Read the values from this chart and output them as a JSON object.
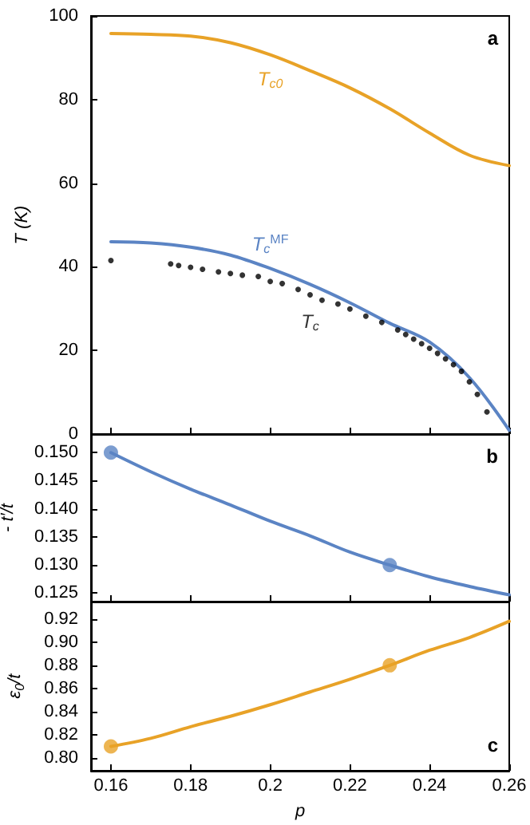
{
  "chart_data": [
    {
      "type": "line",
      "ylabel": "T (K)",
      "xlim": [
        0.155,
        0.26
      ],
      "ylim": [
        0,
        100
      ],
      "xticks": [
        0.16,
        0.18,
        0.2,
        0.22,
        0.24,
        0.26
      ],
      "yticks": [
        0,
        20,
        40,
        60,
        80,
        100
      ],
      "tick_labels": "y",
      "grid": false,
      "legend": false,
      "series": [
        {
          "name": "T$_{c0}$",
          "color": "#e8a227",
          "marker": "none",
          "x": [
            0.16,
            0.17,
            0.18,
            0.19,
            0.2,
            0.21,
            0.22,
            0.23,
            0.24,
            0.25,
            0.26
          ],
          "values": [
            95.8,
            95.6,
            95.2,
            93.6,
            90.7,
            86.9,
            82.8,
            77.8,
            72,
            66.7,
            64.2
          ]
        },
        {
          "name": "T$_{c}$$^{MF}$",
          "color": "#5b84c4",
          "marker": "none",
          "x": [
            0.16,
            0.17,
            0.18,
            0.19,
            0.2,
            0.21,
            0.22,
            0.23,
            0.24,
            0.25,
            0.26
          ],
          "values": [
            46,
            45.7,
            44.7,
            42.8,
            39.6,
            35.8,
            31.4,
            26.5,
            22,
            13.5,
            0.9
          ]
        },
        {
          "type": "scatter",
          "name": "T$_{c}$",
          "color": "#000000",
          "marker": "circle",
          "x": [
            0.16,
            0.175,
            0.177,
            0.18,
            0.183,
            0.187,
            0.19,
            0.193,
            0.197,
            0.2,
            0.203,
            0.207,
            0.21,
            0.213,
            0.217,
            0.22,
            0.224,
            0.228,
            0.232,
            0.234,
            0.236,
            0.238,
            0.24,
            0.242,
            0.244,
            0.246,
            0.248,
            0.25,
            0.252,
            0.2544
          ],
          "values": [
            41.5,
            40.7,
            40.3,
            39.9,
            39.4,
            38.8,
            38.4,
            38,
            37.7,
            36.5,
            36,
            34.6,
            33.3,
            32,
            31.1,
            29.9,
            28.2,
            26.7,
            24.9,
            23.8,
            22.7,
            21.6,
            20.5,
            19.3,
            18,
            16.6,
            15,
            12.5,
            9.5,
            5.3
          ]
        }
      ],
      "annotations": [
        "a"
      ]
    },
    {
      "type": "line",
      "ylabel": "- t′/t",
      "xlim": [
        0.155,
        0.26
      ],
      "ylim": [
        0.1235,
        0.1533
      ],
      "xticks": [
        0.16,
        0.18,
        0.2,
        0.22,
        0.24,
        0.26
      ],
      "yticks": [
        {
          "value": 0.125,
          "label": "0.125"
        },
        {
          "value": 0.13,
          "label": "0.130"
        },
        {
          "value": 0.135,
          "label": "0.135"
        },
        {
          "value": 0.14,
          "label": "0.140"
        },
        {
          "value": 0.145,
          "label": "0.145"
        },
        {
          "value": 0.15,
          "label": "0.150"
        }
      ],
      "tick_labels": "y",
      "grid": false,
      "legend": false,
      "series": [
        {
          "color": "#5b84c4",
          "marker": "none",
          "x": [
            0.16,
            0.17,
            0.18,
            0.19,
            0.2,
            0.21,
            0.22,
            0.23,
            0.24,
            0.25,
            0.26
          ],
          "values": [
            0.15,
            0.1466,
            0.1435,
            0.1407,
            0.1378,
            0.1352,
            0.1323,
            0.13,
            0.1279,
            0.1262,
            0.1247
          ]
        },
        {
          "type": "scatter",
          "color": "#5b84c4",
          "marker": "circle",
          "x": [
            0.16,
            0.23
          ],
          "values": [
            0.15,
            0.13
          ]
        }
      ],
      "annotations": [
        "b"
      ]
    },
    {
      "type": "line",
      "xlabel": "p",
      "ylabel": "ε$_{0}$/t",
      "xlim": [
        0.155,
        0.26
      ],
      "ylim": [
        0.789,
        0.935
      ],
      "xticks": [
        0.16,
        0.18,
        0.2,
        0.22,
        0.24,
        0.26
      ],
      "yticks": [
        {
          "value": 0.8,
          "label": "0.80"
        },
        {
          "value": 0.82,
          "label": "0.82"
        },
        {
          "value": 0.84,
          "label": "0.84"
        },
        {
          "value": 0.86,
          "label": "0.86"
        },
        {
          "value": 0.88,
          "label": "0.88"
        },
        {
          "value": 0.9,
          "label": "0.90"
        },
        {
          "value": 0.92,
          "label": "0.92"
        }
      ],
      "grid": false,
      "legend": false,
      "series": [
        {
          "color": "#e8a227",
          "marker": "none",
          "x": [
            0.16,
            0.17,
            0.18,
            0.19,
            0.2,
            0.21,
            0.22,
            0.23,
            0.24,
            0.25,
            0.26
          ],
          "values": [
            0.81,
            0.817,
            0.827,
            0.836,
            0.846,
            0.857,
            0.868,
            0.88,
            0.893,
            0.904,
            0.918
          ]
        },
        {
          "type": "scatter",
          "color": "#e8a227",
          "marker": "circle",
          "x": [
            0.16,
            0.23
          ],
          "values": [
            0.81,
            0.88
          ]
        }
      ],
      "annotations": [
        "c"
      ]
    }
  ]
}
